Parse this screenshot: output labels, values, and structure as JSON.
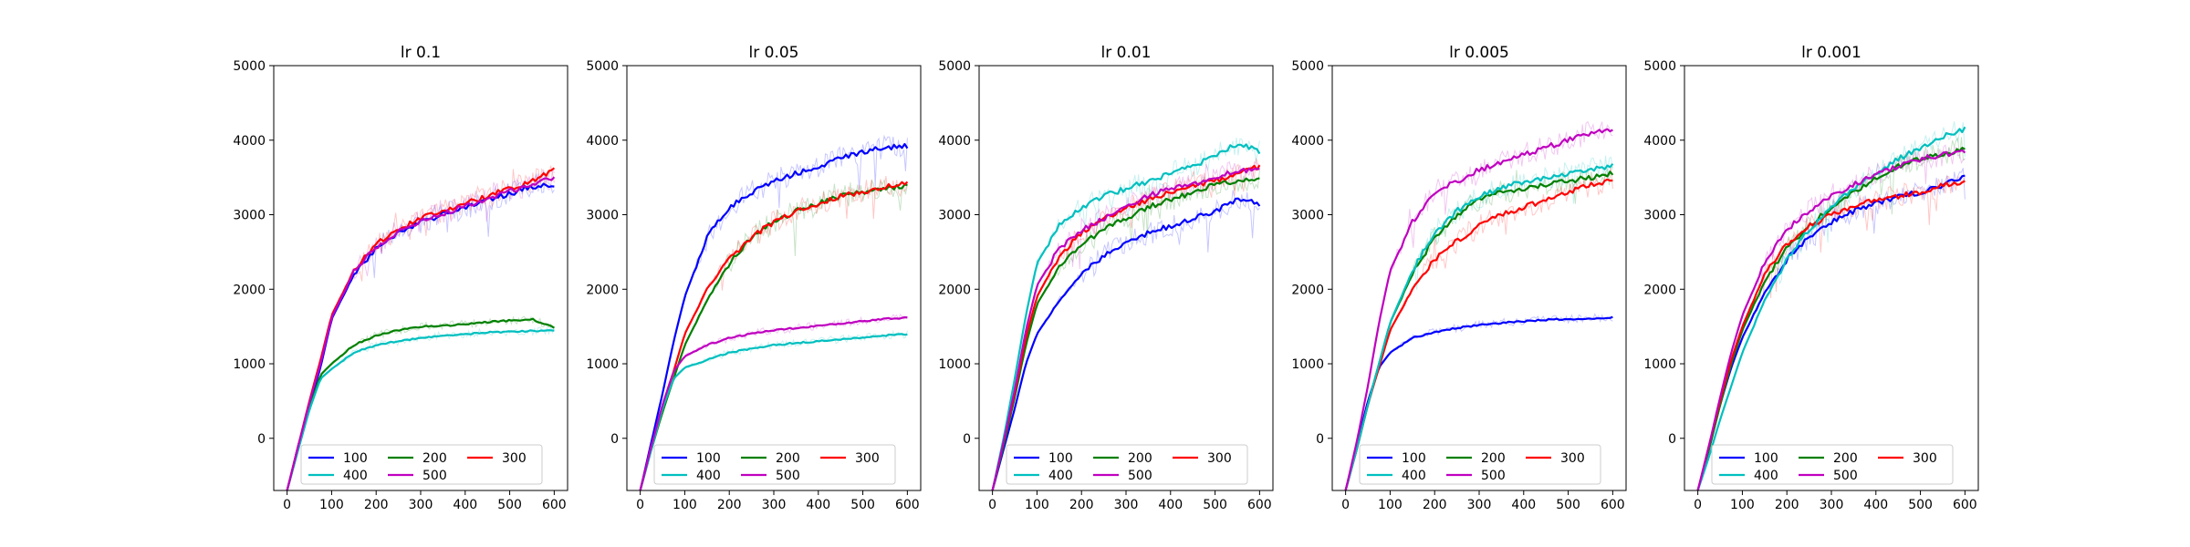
{
  "colors": {
    "100": "#0000ff",
    "200": "#008000",
    "300": "#ff0000",
    "400": "#00bfbf",
    "500": "#bf00bf"
  },
  "chart_data": [
    {
      "type": "line",
      "title": "lr 0.1",
      "x_ticks": [
        0,
        100,
        200,
        300,
        400,
        500,
        600
      ],
      "y_ticks": [
        0,
        1000,
        2000,
        3000,
        4000,
        5000
      ],
      "xlim": [
        -30,
        630
      ],
      "ylim": [
        -700,
        5000
      ],
      "legend": {
        "location": "lower center",
        "columns": 3
      },
      "x": [
        0,
        25,
        50,
        75,
        100,
        150,
        200,
        250,
        300,
        350,
        400,
        450,
        500,
        550,
        600
      ],
      "series": [
        {
          "name": "100",
          "values": [
            -700,
            -100,
            450,
            950,
            1600,
            2200,
            2550,
            2750,
            2900,
            3000,
            3100,
            3200,
            3280,
            3380,
            3400
          ]
        },
        {
          "name": "200",
          "values": [
            -700,
            -150,
            400,
            850,
            1000,
            1250,
            1380,
            1450,
            1500,
            1510,
            1530,
            1560,
            1580,
            1600,
            1480
          ]
        },
        {
          "name": "300",
          "values": [
            -700,
            -100,
            500,
            1050,
            1650,
            2250,
            2600,
            2800,
            2950,
            3050,
            3150,
            3250,
            3350,
            3450,
            3600
          ]
        },
        {
          "name": "400",
          "values": [
            -700,
            -150,
            380,
            800,
            930,
            1150,
            1250,
            1300,
            1350,
            1380,
            1400,
            1420,
            1430,
            1440,
            1450
          ]
        },
        {
          "name": "500",
          "values": [
            -700,
            -100,
            480,
            1000,
            1620,
            2230,
            2570,
            2780,
            2920,
            3020,
            3120,
            3220,
            3320,
            3400,
            3500
          ]
        }
      ]
    },
    {
      "type": "line",
      "title": "lr 0.05",
      "x_ticks": [
        0,
        100,
        200,
        300,
        400,
        500,
        600
      ],
      "y_ticks": [
        0,
        1000,
        2000,
        3000,
        4000,
        5000
      ],
      "xlim": [
        -30,
        630
      ],
      "ylim": [
        -700,
        5000
      ],
      "legend": {
        "location": "lower center",
        "columns": 3
      },
      "x": [
        0,
        25,
        50,
        75,
        100,
        150,
        200,
        250,
        300,
        350,
        400,
        450,
        500,
        550,
        600
      ],
      "series": [
        {
          "name": "100",
          "values": [
            -700,
            -50,
            600,
            1300,
            1900,
            2700,
            3100,
            3300,
            3450,
            3550,
            3650,
            3750,
            3850,
            3900,
            3920
          ]
        },
        {
          "name": "200",
          "values": [
            -700,
            -150,
            350,
            800,
            1250,
            1850,
            2350,
            2700,
            2900,
            3050,
            3150,
            3250,
            3300,
            3350,
            3400
          ]
        },
        {
          "name": "300",
          "values": [
            -700,
            -100,
            400,
            900,
            1400,
            2000,
            2400,
            2700,
            2900,
            3050,
            3150,
            3250,
            3300,
            3380,
            3420
          ]
        },
        {
          "name": "400",
          "values": [
            -700,
            -150,
            400,
            800,
            950,
            1050,
            1150,
            1200,
            1250,
            1280,
            1300,
            1330,
            1350,
            1380,
            1400
          ]
        },
        {
          "name": "500",
          "values": [
            -700,
            -100,
            450,
            900,
            1100,
            1250,
            1350,
            1400,
            1450,
            1480,
            1510,
            1540,
            1570,
            1600,
            1620
          ]
        }
      ]
    },
    {
      "type": "line",
      "title": "lr 0.01",
      "x_ticks": [
        0,
        100,
        200,
        300,
        400,
        500,
        600
      ],
      "y_ticks": [
        0,
        1000,
        2000,
        3000,
        4000,
        5000
      ],
      "xlim": [
        -30,
        630
      ],
      "ylim": [
        -700,
        5000
      ],
      "legend": {
        "location": "lower center",
        "columns": 3
      },
      "x": [
        0,
        25,
        50,
        75,
        100,
        150,
        200,
        250,
        300,
        350,
        400,
        450,
        500,
        550,
        600
      ],
      "series": [
        {
          "name": "100",
          "values": [
            -700,
            -150,
            400,
            1000,
            1400,
            1850,
            2200,
            2450,
            2600,
            2750,
            2850,
            2950,
            3050,
            3200,
            3150
          ]
        },
        {
          "name": "200",
          "values": [
            -700,
            -100,
            550,
            1250,
            1800,
            2300,
            2600,
            2800,
            2950,
            3100,
            3200,
            3300,
            3400,
            3450,
            3500
          ]
        },
        {
          "name": "300",
          "values": [
            -700,
            -50,
            600,
            1350,
            1900,
            2450,
            2750,
            2950,
            3100,
            3200,
            3300,
            3400,
            3450,
            3550,
            3650
          ]
        },
        {
          "name": "400",
          "values": [
            -700,
            0,
            800,
            1650,
            2350,
            2850,
            3100,
            3250,
            3350,
            3450,
            3550,
            3650,
            3800,
            3950,
            3850
          ]
        },
        {
          "name": "500",
          "values": [
            -700,
            -50,
            650,
            1450,
            2050,
            2550,
            2800,
            2950,
            3100,
            3250,
            3350,
            3400,
            3500,
            3580,
            3620
          ]
        }
      ]
    },
    {
      "type": "line",
      "title": "lr 0.005",
      "x_ticks": [
        0,
        100,
        200,
        300,
        400,
        500,
        600
      ],
      "y_ticks": [
        0,
        1000,
        2000,
        3000,
        4000,
        5000
      ],
      "xlim": [
        -30,
        630
      ],
      "ylim": [
        -700,
        5000
      ],
      "legend": {
        "location": "lower center",
        "columns": 3
      },
      "x": [
        0,
        25,
        50,
        75,
        100,
        150,
        200,
        250,
        300,
        350,
        400,
        450,
        500,
        550,
        600
      ],
      "series": [
        {
          "name": "100",
          "values": [
            -700,
            -100,
            500,
            950,
            1150,
            1350,
            1420,
            1480,
            1520,
            1550,
            1570,
            1590,
            1600,
            1610,
            1620
          ]
        },
        {
          "name": "200",
          "values": [
            -700,
            -150,
            450,
            1000,
            1550,
            2200,
            2700,
            3000,
            3200,
            3300,
            3350,
            3400,
            3450,
            3500,
            3550
          ]
        },
        {
          "name": "300",
          "values": [
            -700,
            -150,
            450,
            950,
            1450,
            2000,
            2400,
            2650,
            2850,
            3000,
            3100,
            3200,
            3300,
            3400,
            3450
          ]
        },
        {
          "name": "400",
          "values": [
            -700,
            -150,
            450,
            1000,
            1550,
            2250,
            2750,
            3050,
            3250,
            3350,
            3450,
            3500,
            3550,
            3600,
            3650
          ]
        },
        {
          "name": "500",
          "values": [
            -700,
            -50,
            700,
            1550,
            2250,
            2900,
            3300,
            3450,
            3600,
            3700,
            3800,
            3900,
            4000,
            4100,
            4150
          ]
        }
      ]
    },
    {
      "type": "line",
      "title": "lr 0.001",
      "x_ticks": [
        0,
        100,
        200,
        300,
        400,
        500,
        600
      ],
      "y_ticks": [
        0,
        1000,
        2000,
        3000,
        4000,
        5000
      ],
      "xlim": [
        -30,
        630
      ],
      "ylim": [
        -700,
        5000
      ],
      "legend": {
        "location": "lower center",
        "columns": 3
      },
      "x": [
        0,
        25,
        50,
        75,
        100,
        150,
        200,
        250,
        300,
        350,
        400,
        450,
        500,
        550,
        600
      ],
      "series": [
        {
          "name": "100",
          "values": [
            -700,
            -150,
            450,
            950,
            1350,
            1950,
            2400,
            2700,
            2900,
            3050,
            3150,
            3250,
            3300,
            3400,
            3500
          ]
        },
        {
          "name": "200",
          "values": [
            -700,
            -150,
            450,
            1000,
            1450,
            2100,
            2550,
            2850,
            3100,
            3300,
            3500,
            3650,
            3750,
            3800,
            3900
          ]
        },
        {
          "name": "300",
          "values": [
            -700,
            -100,
            500,
            1050,
            1500,
            2200,
            2600,
            2850,
            3000,
            3100,
            3200,
            3250,
            3300,
            3400,
            3450
          ]
        },
        {
          "name": "400",
          "values": [
            -700,
            -250,
            250,
            700,
            1150,
            1850,
            2400,
            2800,
            3100,
            3350,
            3550,
            3750,
            3900,
            4050,
            4150
          ]
        },
        {
          "name": "500",
          "values": [
            -700,
            -100,
            550,
            1150,
            1650,
            2350,
            2800,
            3050,
            3250,
            3400,
            3550,
            3650,
            3750,
            3800,
            3850
          ]
        }
      ]
    }
  ]
}
